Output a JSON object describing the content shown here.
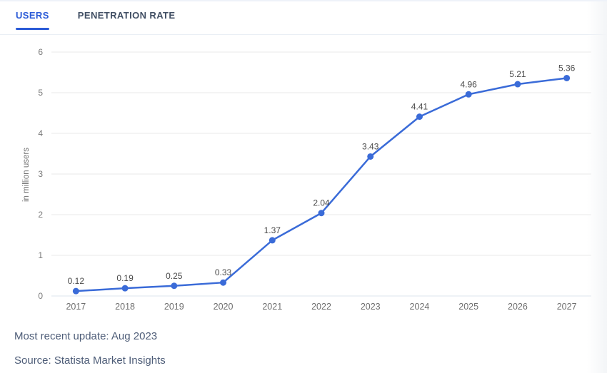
{
  "tabs": [
    {
      "label": "USERS",
      "active": true
    },
    {
      "label": "PENETRATION RATE",
      "active": false
    }
  ],
  "chart_data": {
    "type": "line",
    "categories": [
      "2017",
      "2018",
      "2019",
      "2020",
      "2021",
      "2022",
      "2023",
      "2024",
      "2025",
      "2026",
      "2027"
    ],
    "values": [
      0.12,
      0.19,
      0.25,
      0.33,
      1.37,
      2.04,
      3.43,
      4.41,
      4.96,
      5.21,
      5.36
    ],
    "data_labels": [
      "0.12",
      "0.19",
      "0.25",
      "0.33",
      "1.37",
      "2.04",
      "3.43",
      "4.41",
      "4.96",
      "5.21",
      "5.36"
    ],
    "title": "",
    "xlabel": "",
    "ylabel": "in million users",
    "ylim": [
      0,
      6
    ],
    "yticks": [
      0,
      1,
      2,
      3,
      4,
      5,
      6
    ],
    "grid": true,
    "legend": "none",
    "line_color": "#3a6bd8",
    "zero_line_color": "#dde5ee",
    "grid_color": "#e9e9e9"
  },
  "colors": {
    "accent": "#2b5bd7",
    "inactive_tab": "#404e63",
    "footer_text": "#4e5d78"
  },
  "footer": {
    "updated": "Most recent update: Aug 2023",
    "source": "Source: Statista Market Insights"
  }
}
